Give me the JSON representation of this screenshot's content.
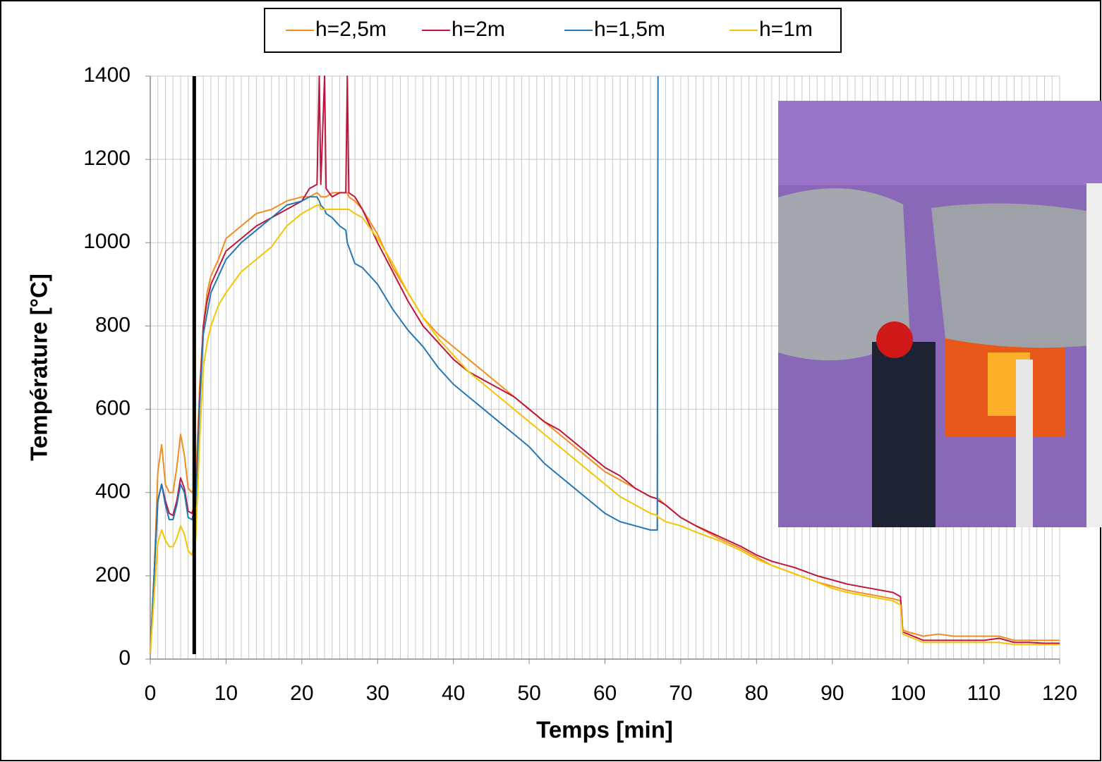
{
  "chart_data": {
    "type": "line",
    "xlabel": "Temps [min]",
    "ylabel": "Température [°C]",
    "x": [
      0,
      0.5,
      1,
      1.5,
      2,
      2.5,
      3,
      3.5,
      4,
      4.5,
      5,
      5.5,
      6,
      6.5,
      7,
      7.5,
      8,
      9,
      10,
      12,
      14,
      16,
      18,
      20,
      21,
      22,
      22.3,
      22.5,
      23,
      23.2,
      24,
      25,
      25.8,
      26,
      26.2,
      27,
      28,
      30,
      32,
      34,
      36,
      38,
      40,
      42,
      44,
      46,
      48,
      50,
      52,
      54,
      56,
      58,
      60,
      62,
      64,
      66,
      66.9,
      67,
      67.1,
      68,
      70,
      72,
      75,
      78,
      80,
      82,
      85,
      88,
      90,
      92,
      95,
      98,
      99,
      99.3,
      100,
      102,
      104,
      106,
      108,
      110,
      112,
      114,
      116,
      118,
      120
    ],
    "series": [
      {
        "name": "h=2,5m",
        "color": "#f28c1e",
        "values": [
          15,
          200,
          450,
          515,
          420,
          400,
          400,
          460,
          540,
          490,
          410,
          400,
          420,
          650,
          800,
          880,
          920,
          960,
          1010,
          1040,
          1070,
          1080,
          1100,
          1110,
          1110,
          1120,
          1115,
          1110,
          1110,
          1110,
          1120,
          1120,
          1120,
          1120,
          1110,
          1100,
          1080,
          1020,
          940,
          880,
          820,
          780,
          750,
          720,
          690,
          660,
          630,
          600,
          570,
          540,
          510,
          480,
          450,
          430,
          410,
          390,
          385,
          385,
          385,
          370,
          340,
          320,
          290,
          265,
          245,
          225,
          205,
          185,
          175,
          165,
          155,
          145,
          140,
          70,
          65,
          55,
          60,
          55,
          55,
          55,
          55,
          45,
          45,
          45,
          45
        ]
      },
      {
        "name": "h=2m",
        "color": "#c0143c",
        "values": [
          15,
          200,
          380,
          420,
          380,
          350,
          345,
          380,
          435,
          410,
          355,
          350,
          380,
          620,
          800,
          860,
          900,
          940,
          980,
          1010,
          1040,
          1060,
          1080,
          1100,
          1130,
          1140,
          1400,
          1140,
          1400,
          1130,
          1110,
          1120,
          1120,
          1400,
          1120,
          1110,
          1080,
          1000,
          930,
          860,
          800,
          760,
          720,
          690,
          670,
          650,
          630,
          600,
          570,
          550,
          520,
          490,
          460,
          440,
          410,
          390,
          385,
          380,
          380,
          370,
          340,
          320,
          295,
          270,
          250,
          235,
          220,
          200,
          190,
          180,
          170,
          160,
          150,
          65,
          60,
          45,
          45,
          45,
          45,
          45,
          50,
          40,
          40,
          38,
          38
        ]
      },
      {
        "name": "h=1,5m",
        "color": "#2377b4",
        "values": [
          15,
          200,
          380,
          420,
          370,
          335,
          335,
          370,
          420,
          400,
          340,
          335,
          370,
          600,
          780,
          830,
          880,
          920,
          960,
          1000,
          1030,
          1060,
          1090,
          1100,
          1110,
          1110,
          1100,
          1090,
          1080,
          1070,
          1060,
          1040,
          1030,
          1000,
          990,
          950,
          940,
          900,
          840,
          790,
          750,
          700,
          660,
          630,
          600,
          570,
          540,
          510,
          470,
          440,
          410,
          380,
          350,
          330,
          320,
          310,
          310,
          1400,
          null,
          null,
          null,
          null,
          null,
          null,
          null,
          null,
          null,
          null,
          null,
          null,
          null,
          null,
          null,
          null,
          null,
          null,
          null,
          null,
          null,
          null,
          null,
          null,
          null,
          null,
          null
        ]
      },
      {
        "name": "h=1m",
        "color": "#f5c400",
        "values": [
          15,
          150,
          280,
          310,
          285,
          270,
          270,
          290,
          320,
          300,
          260,
          250,
          290,
          520,
          700,
          760,
          800,
          850,
          880,
          930,
          960,
          990,
          1040,
          1070,
          1080,
          1090,
          1090,
          1080,
          1080,
          1080,
          1080,
          1080,
          1080,
          1080,
          1080,
          1070,
          1060,
          1010,
          950,
          880,
          820,
          770,
          730,
          690,
          660,
          630,
          600,
          570,
          540,
          510,
          480,
          450,
          420,
          390,
          370,
          350,
          345,
          340,
          340,
          330,
          320,
          305,
          285,
          260,
          240,
          225,
          205,
          185,
          170,
          160,
          150,
          140,
          130,
          60,
          55,
          40,
          40,
          40,
          40,
          40,
          40,
          35,
          35,
          35,
          35
        ]
      }
    ],
    "xlim": [
      0,
      120
    ],
    "ylim": [
      0,
      1400
    ],
    "xticks": [
      0,
      10,
      20,
      30,
      40,
      50,
      60,
      70,
      80,
      90,
      100,
      110,
      120
    ],
    "yticks": [
      0,
      200,
      400,
      600,
      800,
      1000,
      1200,
      1400
    ],
    "grid": true,
    "x_minor_grid": 1,
    "vertical_line": {
      "x": 5.8,
      "color": "#000000"
    },
    "legend": "top"
  }
}
